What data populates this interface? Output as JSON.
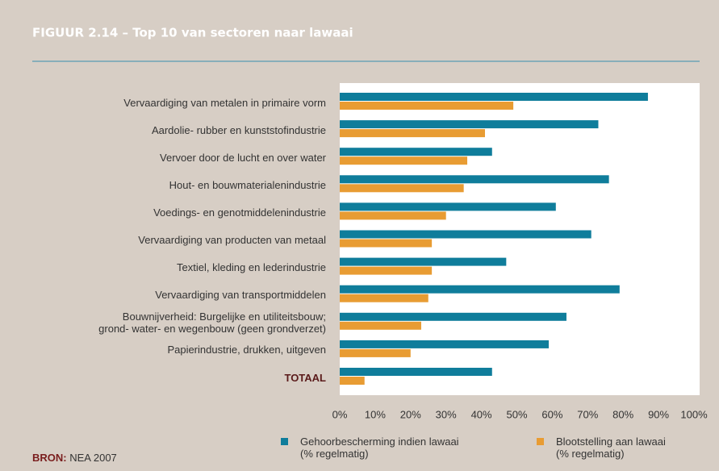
{
  "chart_data": {
    "type": "bar",
    "orientation": "horizontal",
    "title": "FIGUUR 2.14 – Top 10 van sectoren naar lawaai",
    "categories": [
      "Vervaardiging van metalen in primaire vorm",
      "Aardolie- rubber en kunststofindustrie",
      "Vervoer door de lucht en over water",
      "Hout- en bouwmaterialenindustrie",
      "Voedings- en genotmiddelenindustrie",
      "Vervaardiging van producten van metaal",
      "Textiel, kleding en lederindustrie",
      "Vervaardiging van transportmiddelen",
      "Bouwnijverheid: Burgelijke en utiliteitsbouw;\ngrond- water- en wegenbouw (geen grondverzet)",
      "Papierindustrie, drukken, uitgeven",
      "TOTAAL"
    ],
    "series": [
      {
        "name": "Gehoorbescherming indien lawaai\n(% regelmatig)",
        "color": "#0f7d9b",
        "values": [
          87,
          73,
          43,
          76,
          61,
          71,
          47,
          79,
          64,
          59,
          43
        ]
      },
      {
        "name": "Blootstelling aan lawaai\n(% regelmatig)",
        "color": "#e89c33",
        "values": [
          49,
          41,
          36,
          35,
          30,
          26,
          26,
          25,
          23,
          20,
          7
        ]
      }
    ],
    "xlim": [
      0,
      100
    ],
    "xticks": [
      {
        "value": 0,
        "label": "0%"
      },
      {
        "value": 10,
        "label": "10%"
      },
      {
        "value": 20,
        "label": "20%"
      },
      {
        "value": 30,
        "label": "30%"
      },
      {
        "value": 40,
        "label": "40%"
      },
      {
        "value": 50,
        "label": "50%"
      },
      {
        "value": 60,
        "label": "60%"
      },
      {
        "value": 70,
        "label": "70%"
      },
      {
        "value": 80,
        "label": "80%"
      },
      {
        "value": 90,
        "label": "90%"
      },
      {
        "value": 100,
        "label": "100%"
      }
    ],
    "grid": false,
    "legend": "bottom",
    "source_label": "BRON:",
    "source": "NEA 2007"
  }
}
